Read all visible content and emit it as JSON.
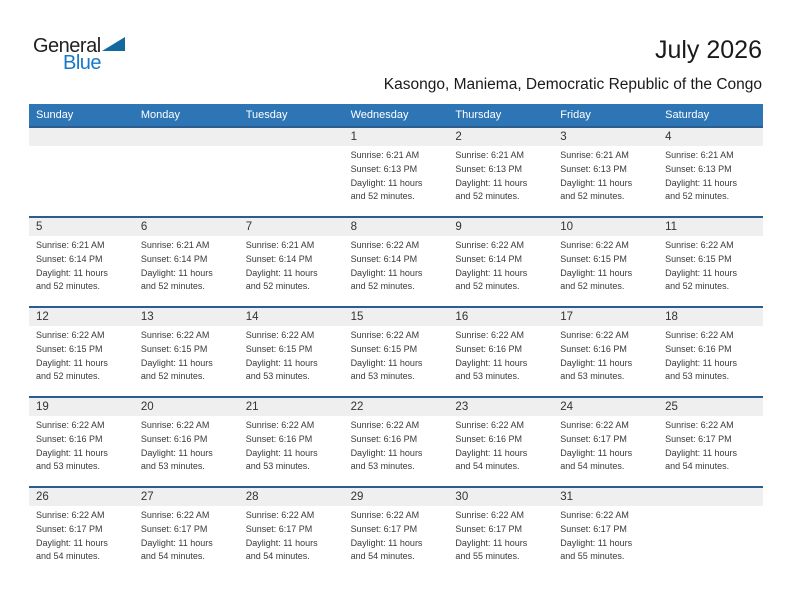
{
  "logo": {
    "word1": "General",
    "word2": "Blue"
  },
  "title": "July 2026",
  "subtitle": "Kasongo, Maniema, Democratic Republic of the Congo",
  "colors": {
    "header-blue": "#2E75B6",
    "separator-blue": "#2B5D8F",
    "strip-gray": "#EFEFEF",
    "logo-blue": "#1878C8",
    "triangle-blue": "#13699E",
    "text-dark": "#1A1A1A",
    "cell-text": "#3A3A3A"
  },
  "calendar": {
    "weekday_headers": [
      "Sunday",
      "Monday",
      "Tuesday",
      "Wednesday",
      "Thursday",
      "Friday",
      "Saturday"
    ],
    "weeks": [
      [
        null,
        null,
        null,
        {
          "day": "1",
          "lines": [
            "Sunrise: 6:21 AM",
            "Sunset: 6:13 PM",
            "Daylight: 11 hours",
            "and 52 minutes."
          ]
        },
        {
          "day": "2",
          "lines": [
            "Sunrise: 6:21 AM",
            "Sunset: 6:13 PM",
            "Daylight: 11 hours",
            "and 52 minutes."
          ]
        },
        {
          "day": "3",
          "lines": [
            "Sunrise: 6:21 AM",
            "Sunset: 6:13 PM",
            "Daylight: 11 hours",
            "and 52 minutes."
          ]
        },
        {
          "day": "4",
          "lines": [
            "Sunrise: 6:21 AM",
            "Sunset: 6:13 PM",
            "Daylight: 11 hours",
            "and 52 minutes."
          ]
        }
      ],
      [
        {
          "day": "5",
          "lines": [
            "Sunrise: 6:21 AM",
            "Sunset: 6:14 PM",
            "Daylight: 11 hours",
            "and 52 minutes."
          ]
        },
        {
          "day": "6",
          "lines": [
            "Sunrise: 6:21 AM",
            "Sunset: 6:14 PM",
            "Daylight: 11 hours",
            "and 52 minutes."
          ]
        },
        {
          "day": "7",
          "lines": [
            "Sunrise: 6:21 AM",
            "Sunset: 6:14 PM",
            "Daylight: 11 hours",
            "and 52 minutes."
          ]
        },
        {
          "day": "8",
          "lines": [
            "Sunrise: 6:22 AM",
            "Sunset: 6:14 PM",
            "Daylight: 11 hours",
            "and 52 minutes."
          ]
        },
        {
          "day": "9",
          "lines": [
            "Sunrise: 6:22 AM",
            "Sunset: 6:14 PM",
            "Daylight: 11 hours",
            "and 52 minutes."
          ]
        },
        {
          "day": "10",
          "lines": [
            "Sunrise: 6:22 AM",
            "Sunset: 6:15 PM",
            "Daylight: 11 hours",
            "and 52 minutes."
          ]
        },
        {
          "day": "11",
          "lines": [
            "Sunrise: 6:22 AM",
            "Sunset: 6:15 PM",
            "Daylight: 11 hours",
            "and 52 minutes."
          ]
        }
      ],
      [
        {
          "day": "12",
          "lines": [
            "Sunrise: 6:22 AM",
            "Sunset: 6:15 PM",
            "Daylight: 11 hours",
            "and 52 minutes."
          ]
        },
        {
          "day": "13",
          "lines": [
            "Sunrise: 6:22 AM",
            "Sunset: 6:15 PM",
            "Daylight: 11 hours",
            "and 52 minutes."
          ]
        },
        {
          "day": "14",
          "lines": [
            "Sunrise: 6:22 AM",
            "Sunset: 6:15 PM",
            "Daylight: 11 hours",
            "and 53 minutes."
          ]
        },
        {
          "day": "15",
          "lines": [
            "Sunrise: 6:22 AM",
            "Sunset: 6:15 PM",
            "Daylight: 11 hours",
            "and 53 minutes."
          ]
        },
        {
          "day": "16",
          "lines": [
            "Sunrise: 6:22 AM",
            "Sunset: 6:16 PM",
            "Daylight: 11 hours",
            "and 53 minutes."
          ]
        },
        {
          "day": "17",
          "lines": [
            "Sunrise: 6:22 AM",
            "Sunset: 6:16 PM",
            "Daylight: 11 hours",
            "and 53 minutes."
          ]
        },
        {
          "day": "18",
          "lines": [
            "Sunrise: 6:22 AM",
            "Sunset: 6:16 PM",
            "Daylight: 11 hours",
            "and 53 minutes."
          ]
        }
      ],
      [
        {
          "day": "19",
          "lines": [
            "Sunrise: 6:22 AM",
            "Sunset: 6:16 PM",
            "Daylight: 11 hours",
            "and 53 minutes."
          ]
        },
        {
          "day": "20",
          "lines": [
            "Sunrise: 6:22 AM",
            "Sunset: 6:16 PM",
            "Daylight: 11 hours",
            "and 53 minutes."
          ]
        },
        {
          "day": "21",
          "lines": [
            "Sunrise: 6:22 AM",
            "Sunset: 6:16 PM",
            "Daylight: 11 hours",
            "and 53 minutes."
          ]
        },
        {
          "day": "22",
          "lines": [
            "Sunrise: 6:22 AM",
            "Sunset: 6:16 PM",
            "Daylight: 11 hours",
            "and 53 minutes."
          ]
        },
        {
          "day": "23",
          "lines": [
            "Sunrise: 6:22 AM",
            "Sunset: 6:16 PM",
            "Daylight: 11 hours",
            "and 54 minutes."
          ]
        },
        {
          "day": "24",
          "lines": [
            "Sunrise: 6:22 AM",
            "Sunset: 6:17 PM",
            "Daylight: 11 hours",
            "and 54 minutes."
          ]
        },
        {
          "day": "25",
          "lines": [
            "Sunrise: 6:22 AM",
            "Sunset: 6:17 PM",
            "Daylight: 11 hours",
            "and 54 minutes."
          ]
        }
      ],
      [
        {
          "day": "26",
          "lines": [
            "Sunrise: 6:22 AM",
            "Sunset: 6:17 PM",
            "Daylight: 11 hours",
            "and 54 minutes."
          ]
        },
        {
          "day": "27",
          "lines": [
            "Sunrise: 6:22 AM",
            "Sunset: 6:17 PM",
            "Daylight: 11 hours",
            "and 54 minutes."
          ]
        },
        {
          "day": "28",
          "lines": [
            "Sunrise: 6:22 AM",
            "Sunset: 6:17 PM",
            "Daylight: 11 hours",
            "and 54 minutes."
          ]
        },
        {
          "day": "29",
          "lines": [
            "Sunrise: 6:22 AM",
            "Sunset: 6:17 PM",
            "Daylight: 11 hours",
            "and 54 minutes."
          ]
        },
        {
          "day": "30",
          "lines": [
            "Sunrise: 6:22 AM",
            "Sunset: 6:17 PM",
            "Daylight: 11 hours",
            "and 55 minutes."
          ]
        },
        {
          "day": "31",
          "lines": [
            "Sunrise: 6:22 AM",
            "Sunset: 6:17 PM",
            "Daylight: 11 hours",
            "and 55 minutes."
          ]
        },
        null
      ]
    ]
  }
}
